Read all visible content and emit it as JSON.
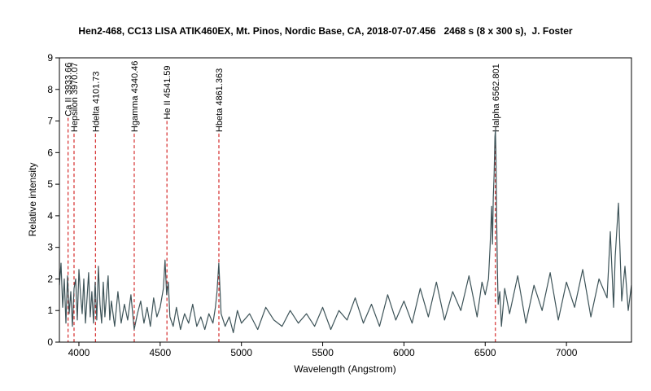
{
  "chart_data": {
    "type": "line",
    "title": "Hen2-468, CC13 LISA ATIK460EX, Mt. Pinos, Nordic Base, CA, 2018-07-07.456   2468 s (8 x 300 s),  J. Foster",
    "xlabel": "Wavelength (Angstrom)",
    "ylabel": "Relative intensity",
    "xlim": [
      3880,
      7400
    ],
    "ylim": [
      0,
      9
    ],
    "x_ticks": [
      4000,
      4500,
      5000,
      5500,
      6000,
      6500,
      7000
    ],
    "y_ticks": [
      0,
      1,
      2,
      3,
      4,
      5,
      6,
      7,
      8,
      9
    ],
    "grid": false,
    "legend": "none",
    "colors": {
      "spectrum": "#3d5358",
      "markers": "#cc0000",
      "frame": "#000000"
    },
    "line_markers": [
      {
        "label": "Ca II 3933.66",
        "x": 3933.66,
        "y_top": 7.1
      },
      {
        "label": "Hepsilon 3970.07",
        "x": 3970.07,
        "y_top": 6.6
      },
      {
        "label": "Hdelta 4101.73",
        "x": 4101.73,
        "y_top": 6.6
      },
      {
        "label": "Hgamma 4340.46",
        "x": 4340.46,
        "y_top": 6.6
      },
      {
        "label": "He II 4541.59",
        "x": 4541.59,
        "y_top": 7.0
      },
      {
        "label": "Hbeta 4861.363",
        "x": 4861.363,
        "y_top": 6.6
      },
      {
        "label": "Halpha 6562.801",
        "x": 6562.801,
        "y_top": 6.6
      }
    ],
    "series": [
      {
        "x": [
          3880,
          3890,
          3900,
          3910,
          3920,
          3930,
          3940,
          3950,
          3960,
          3970,
          3980,
          3990,
          4000,
          4010,
          4020,
          4030,
          4040,
          4050,
          4060,
          4070,
          4080,
          4090,
          4100,
          4110,
          4120,
          4130,
          4140,
          4150,
          4160,
          4170,
          4180,
          4190,
          4200,
          4220,
          4240,
          4260,
          4280,
          4300,
          4320,
          4340,
          4360,
          4380,
          4400,
          4420,
          4440,
          4460,
          4480,
          4500,
          4520,
          4530,
          4540,
          4550,
          4560,
          4580,
          4600,
          4625,
          4650,
          4675,
          4700,
          4725,
          4750,
          4775,
          4800,
          4825,
          4840,
          4850,
          4861,
          4875,
          4900,
          4925,
          4950,
          4975,
          5000,
          5050,
          5100,
          5150,
          5200,
          5250,
          5300,
          5350,
          5400,
          5450,
          5500,
          5550,
          5600,
          5650,
          5700,
          5750,
          5800,
          5850,
          5900,
          5950,
          6000,
          6050,
          6100,
          6150,
          6200,
          6250,
          6300,
          6350,
          6400,
          6450,
          6480,
          6500,
          6520,
          6530,
          6540,
          6545,
          6550,
          6555,
          6560,
          6563,
          6566,
          6570,
          6575,
          6580,
          6590,
          6600,
          6620,
          6650,
          6700,
          6750,
          6800,
          6850,
          6900,
          6950,
          7000,
          7050,
          7100,
          7150,
          7200,
          7250,
          7270,
          7290,
          7300,
          7320,
          7340,
          7360,
          7380,
          7400
        ],
        "y": [
          1.8,
          2.5,
          1.1,
          2.0,
          0.6,
          2.1,
          0.9,
          1.6,
          0.5,
          1.7,
          2.0,
          0.7,
          2.3,
          1.5,
          0.9,
          2.0,
          0.6,
          1.4,
          2.2,
          0.8,
          1.6,
          0.6,
          1.9,
          0.7,
          2.4,
          1.2,
          0.6,
          1.9,
          0.8,
          1.5,
          2.1,
          0.7,
          1.3,
          0.5,
          1.6,
          0.6,
          1.2,
          0.7,
          1.5,
          0.4,
          0.9,
          1.3,
          0.6,
          1.1,
          0.5,
          1.4,
          0.8,
          1.1,
          1.7,
          2.6,
          1.5,
          1.9,
          0.8,
          0.5,
          1.1,
          0.4,
          0.9,
          0.6,
          1.2,
          0.5,
          0.8,
          0.4,
          0.9,
          0.6,
          1.1,
          1.6,
          2.5,
          0.9,
          0.5,
          0.8,
          0.3,
          1.0,
          0.6,
          0.9,
          0.4,
          1.1,
          0.7,
          0.5,
          1.0,
          0.6,
          0.9,
          0.5,
          1.1,
          0.4,
          1.0,
          0.7,
          1.4,
          0.6,
          1.2,
          0.5,
          1.5,
          0.7,
          1.3,
          0.6,
          1.7,
          0.8,
          1.9,
          0.7,
          1.6,
          1.0,
          2.1,
          0.8,
          1.9,
          1.5,
          2.0,
          3.0,
          4.3,
          3.1,
          4.6,
          5.3,
          6.5,
          6.7,
          6.1,
          4.2,
          2.3,
          1.2,
          1.6,
          0.5,
          1.7,
          0.9,
          2.1,
          0.6,
          1.8,
          1.0,
          2.2,
          0.7,
          1.9,
          1.1,
          2.3,
          0.8,
          2.0,
          1.4,
          3.5,
          1.1,
          2.7,
          4.4,
          1.3,
          2.4,
          1.0,
          1.8
        ]
      }
    ]
  }
}
